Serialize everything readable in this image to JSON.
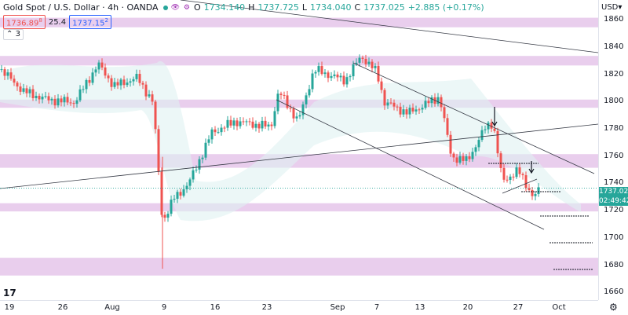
{
  "legend": {
    "title": "Gold Spot / U.S. Dollar · 4h · OANDA",
    "icons": "eye-icon settings-icon",
    "o_label": "O",
    "o_value": "1734.140",
    "h_label": "H",
    "h_value": "1737.725",
    "l_label": "L",
    "l_value": "1734.040",
    "c_label": "C",
    "c_value": "1737.025",
    "change": "+2.885 (+0.17%)"
  },
  "trade": {
    "sell": "1736.89",
    "sell_sup": "8",
    "spread": "25.4",
    "buy": "1737.15",
    "buy_sup": "2"
  },
  "indicators_toggle": "3",
  "currency": "USD▾",
  "last_price": {
    "price": "1737.025",
    "countdown": "02:49:42"
  },
  "colors": {
    "up": "#26a69a",
    "down": "#ef5350",
    "zone": "#e1bee7",
    "envelope": "#e0f2f1"
  },
  "chart_data": {
    "type": "candlestick",
    "ylim": [
      1655,
      1875
    ],
    "y_ticks": [
      1660,
      1680,
      1700,
      1720,
      1740,
      1760,
      1780,
      1800,
      1820,
      1840,
      1860
    ],
    "x_ticks": [
      "19",
      "26",
      "Aug",
      "9",
      "16",
      "23",
      "Sep",
      "7",
      "13",
      "20",
      "27",
      "Oct"
    ],
    "current_price": 1737.025,
    "zones": [
      [
        1855,
        1862
      ],
      [
        1827,
        1834
      ],
      [
        1796,
        1802
      ],
      [
        1752,
        1762
      ],
      [
        1720,
        1726
      ],
      [
        1673,
        1686
      ]
    ]
  }
}
